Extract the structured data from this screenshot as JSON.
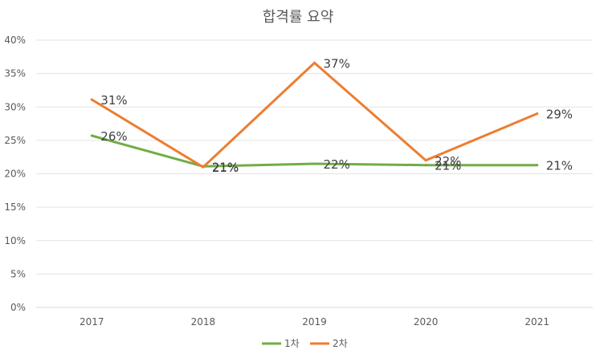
{
  "chart_data": {
    "type": "line",
    "title": "합격률 요약",
    "categories": [
      "2017",
      "2018",
      "2019",
      "2020",
      "2021"
    ],
    "ylim": [
      0,
      40
    ],
    "yticks": [
      "0%",
      "5%",
      "10%",
      "15%",
      "20%",
      "25%",
      "30%",
      "35%",
      "40%"
    ],
    "grid": true,
    "legend_position": "bottom",
    "series": [
      {
        "name": "1차",
        "color": "#70AD47",
        "values": [
          25.7,
          21.1,
          21.5,
          21.3,
          21.3
        ],
        "labels": [
          "26%",
          "21%",
          "22%",
          "21%",
          "21%"
        ]
      },
      {
        "name": "2차",
        "color": "#ED7D31",
        "values": [
          31.1,
          21.0,
          36.6,
          22.0,
          29.0
        ],
        "labels": [
          "31%",
          "21%",
          "37%",
          "22%",
          "29%"
        ]
      }
    ]
  }
}
